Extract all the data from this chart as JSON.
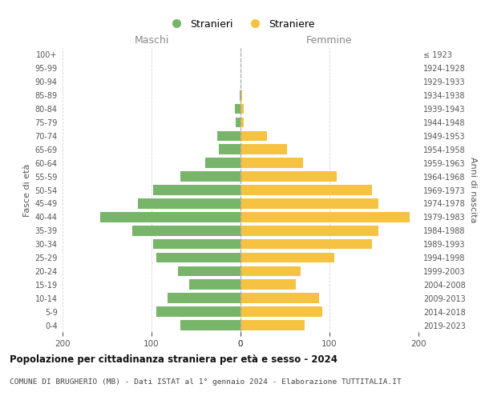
{
  "age_groups": [
    "0-4",
    "5-9",
    "10-14",
    "15-19",
    "20-24",
    "25-29",
    "30-34",
    "35-39",
    "40-44",
    "45-49",
    "50-54",
    "55-59",
    "60-64",
    "65-69",
    "70-74",
    "75-79",
    "80-84",
    "85-89",
    "90-94",
    "95-99",
    "100+"
  ],
  "birth_years": [
    "2019-2023",
    "2014-2018",
    "2009-2013",
    "2004-2008",
    "1999-2003",
    "1994-1998",
    "1989-1993",
    "1984-1988",
    "1979-1983",
    "1974-1978",
    "1969-1973",
    "1964-1968",
    "1959-1963",
    "1954-1958",
    "1949-1953",
    "1944-1948",
    "1939-1943",
    "1934-1938",
    "1929-1933",
    "1924-1928",
    "≤ 1923"
  ],
  "maschi": [
    68,
    95,
    82,
    58,
    70,
    95,
    98,
    122,
    158,
    115,
    98,
    68,
    40,
    24,
    26,
    5,
    6,
    1,
    0,
    0,
    0
  ],
  "femmine": [
    72,
    92,
    88,
    62,
    68,
    105,
    148,
    155,
    190,
    155,
    148,
    108,
    70,
    52,
    30,
    4,
    4,
    2,
    0,
    0,
    0
  ],
  "maschi_color": "#78b56a",
  "femmine_color": "#f5c242",
  "title": "Popolazione per cittadinanza straniera per età e sesso - 2024",
  "subtitle": "COMUNE DI BRUGHERIO (MB) - Dati ISTAT al 1° gennaio 2024 - Elaborazione TUTTITALIA.IT",
  "label_maschi": "Maschi",
  "label_femmine": "Femmine",
  "ylabel_left": "Fasce di età",
  "ylabel_right": "Anni di nascita",
  "legend_stranieri": "Stranieri",
  "legend_straniere": "Straniere",
  "xlim": 200,
  "background_color": "#ffffff",
  "grid_color": "#cccccc",
  "label_color": "#888888"
}
